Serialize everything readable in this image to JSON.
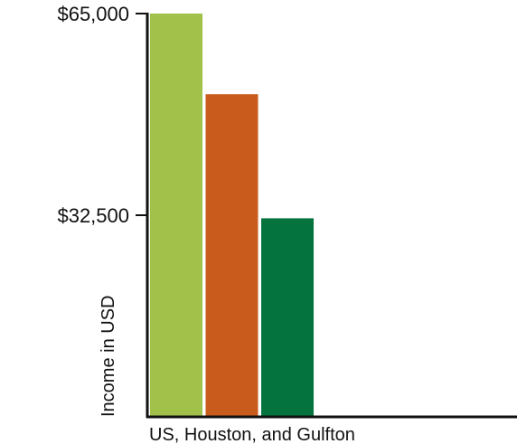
{
  "chart_data": {
    "type": "bar",
    "xlabel": "US, Houston, and Gulfton",
    "ylabel": "Income in USD",
    "ylim": [
      0,
      65000
    ],
    "yticks": [
      32500,
      65000
    ],
    "ytick_labels": [
      "$32,500",
      "$65,000"
    ],
    "grid": false,
    "legend": "none",
    "values": [
      65000,
      52000,
      32000
    ],
    "colors": [
      "#a2c14b",
      "#c95c1c",
      "#05733d"
    ]
  }
}
